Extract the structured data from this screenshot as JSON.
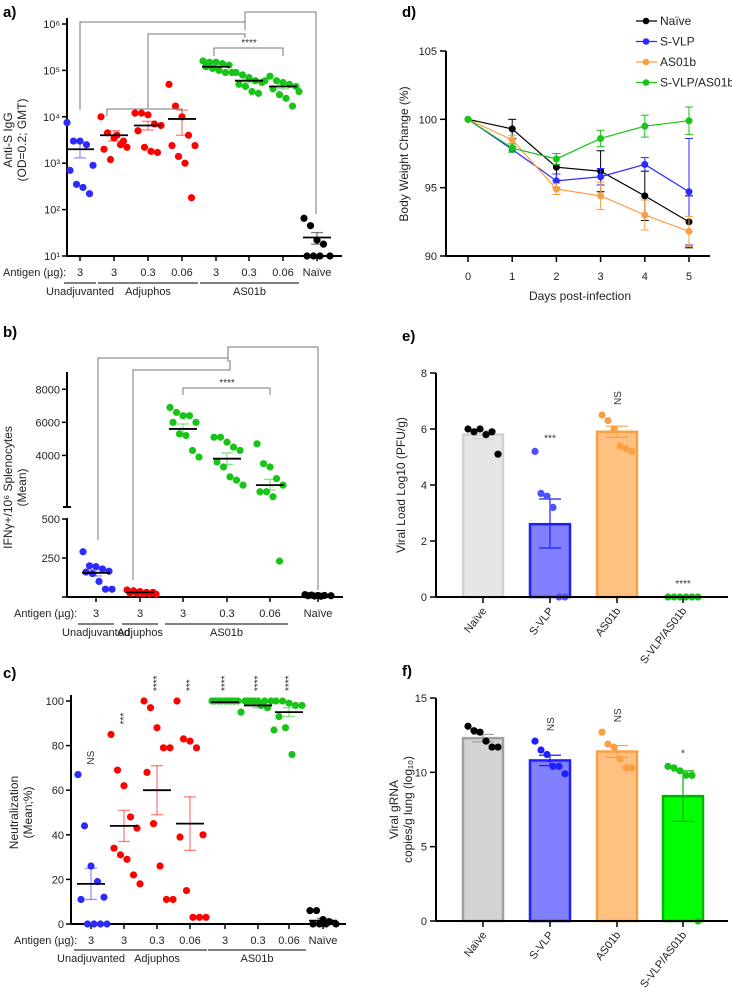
{
  "panels": {
    "a": "a)",
    "b": "b)",
    "c": "c)",
    "d": "d)",
    "e": "e)",
    "f": "f)"
  },
  "colors": {
    "blue": "#2b2bff",
    "red": "#ff0000",
    "green": "#19c419",
    "black": "#000000",
    "orange": "#f9a045"
  },
  "chart_data": [
    {
      "id": "a",
      "type": "scatter",
      "scale": "log",
      "ylabel": [
        "Anti-S IgG",
        "(OD=0.2; GMT)"
      ],
      "ylim": [
        10,
        1000000
      ],
      "yticks": [
        {
          "v": 10,
          "label": "10¹"
        },
        {
          "v": 100,
          "label": "10²"
        },
        {
          "v": 1000,
          "label": "10³"
        },
        {
          "v": 10000,
          "label": "10⁴"
        },
        {
          "v": 100000,
          "label": "10⁵"
        },
        {
          "v": 1000000,
          "label": "10⁶"
        }
      ],
      "antigen_label": "Antigen (µg):",
      "x_tick_labels": [
        "3",
        "3",
        "0.3",
        "0.06",
        "3",
        "0.3",
        "0.06",
        "Naïve"
      ],
      "adjuvant_groups": [
        {
          "label": "Unadjuvanted",
          "from": 0,
          "to": 0
        },
        {
          "label": "Adjuphos",
          "from": 1,
          "to": 3
        },
        {
          "label": "AS01b",
          "from": 4,
          "to": 6
        }
      ],
      "significance": "****",
      "groups": [
        {
          "color": "blue",
          "points": [
            7500,
            3000,
            3000,
            2500,
            900,
            700,
            350,
            300,
            220
          ],
          "mean": 2000,
          "err": [
            1300,
            2800
          ]
        },
        {
          "color": "red",
          "points": [
            10000,
            4500,
            3500,
            2500,
            2200,
            2000,
            1200,
            4000,
            3000
          ],
          "mean": 4000,
          "err": [
            3000,
            5000
          ]
        },
        {
          "color": "red",
          "points": [
            12000,
            12000,
            11000,
            7000,
            6500,
            5000,
            2200,
            1800,
            1700
          ],
          "mean": 6500,
          "err": [
            5200,
            8000
          ]
        },
        {
          "color": "red",
          "points": [
            50000,
            17000,
            10000,
            4000,
            2400,
            2400,
            1400,
            1000,
            180
          ],
          "mean": 9000,
          "err": [
            4000,
            14000
          ]
        },
        {
          "color": "green",
          "points": [
            160000,
            150000,
            150000,
            140000,
            130000,
            120000,
            110000,
            100000,
            90000,
            90000
          ],
          "mean": 120000,
          "err": [
            110000,
            135000
          ]
        },
        {
          "color": "green",
          "points": [
            90000,
            80000,
            70000,
            60000,
            55000,
            50000,
            45000,
            35000,
            32000,
            60000
          ],
          "mean": 60000,
          "err": [
            55000,
            66000
          ]
        },
        {
          "color": "green",
          "points": [
            75000,
            60000,
            55000,
            50000,
            45000,
            40000,
            30000,
            25000,
            17000,
            35000
          ],
          "mean": 45000,
          "err": [
            40000,
            50000
          ]
        },
        {
          "color": "black",
          "points": [
            65,
            45,
            22,
            18,
            10,
            10,
            10,
            10
          ],
          "mean": 25,
          "err": [
            18,
            32
          ]
        }
      ]
    },
    {
      "id": "b",
      "type": "scatter",
      "scale": "broken-linear",
      "ylabel": [
        "IFNγ+/10⁶ Splenocytes",
        "(Mean)"
      ],
      "yticks": [
        {
          "v": 0,
          "label": ""
        },
        {
          "v": 250,
          "label": "250"
        },
        {
          "v": 500,
          "label": "500"
        },
        {
          "v": 4000,
          "label": "4000"
        },
        {
          "v": 6000,
          "label": "6000"
        },
        {
          "v": 8000,
          "label": "8000"
        }
      ],
      "antigen_label": "Antigen (µg):",
      "x_tick_labels": [
        "3",
        "3",
        "3",
        "0.3",
        "0.06",
        "Naïve"
      ],
      "adjuvant_groups": [
        {
          "label": "Unadjuvanted",
          "from": 0,
          "to": 0
        },
        {
          "label": "Adjuphos",
          "from": 1,
          "to": 1
        },
        {
          "label": "AS01b",
          "from": 2,
          "to": 4
        }
      ],
      "significance": "****",
      "groups": [
        {
          "color": "blue",
          "points": [
            290,
            200,
            195,
            180,
            165,
            160,
            150,
            100,
            50,
            50
          ],
          "mean": 155,
          "err": [
            135,
            175
          ]
        },
        {
          "color": "red",
          "points": [
            45,
            40,
            35,
            30,
            30,
            25,
            25,
            20,
            20,
            18
          ],
          "mean": 30,
          "err": [
            25,
            35
          ]
        },
        {
          "color": "green",
          "points": [
            6900,
            6600,
            6400,
            6400,
            6000,
            6000,
            5300,
            5200,
            4300,
            3900
          ],
          "mean": 5600,
          "err": [
            5300,
            5900
          ]
        },
        {
          "color": "green",
          "points": [
            5100,
            5100,
            4800,
            4500,
            4300,
            3600,
            3300,
            2700,
            2500,
            2200
          ],
          "mean": 3800,
          "err": [
            3450,
            4150
          ]
        },
        {
          "color": "green",
          "points": [
            4700,
            3500,
            3300,
            2600,
            2200,
            1800,
            1800,
            1500,
            230
          ],
          "mean": 2200,
          "err": [
            1900,
            2550
          ]
        },
        {
          "color": "black",
          "points": [
            15,
            12,
            10,
            10,
            8,
            8,
            6,
            5
          ],
          "mean": 9,
          "err": [
            7,
            11
          ]
        }
      ]
    },
    {
      "id": "c",
      "type": "scatter",
      "scale": "linear",
      "ylabel": [
        "Neutralization",
        "(Mean;%)"
      ],
      "ylim": [
        0,
        100
      ],
      "yticks": [
        {
          "v": 0,
          "label": "0"
        },
        {
          "v": 20,
          "label": "20"
        },
        {
          "v": 40,
          "label": "40"
        },
        {
          "v": 60,
          "label": "60"
        },
        {
          "v": 80,
          "label": "80"
        },
        {
          "v": 100,
          "label": "100"
        }
      ],
      "antigen_label": "Antigen (µg):",
      "x_tick_labels": [
        "3",
        "3",
        "0.3",
        "0.06",
        "3",
        "0.3",
        "0.06",
        "Naïve"
      ],
      "adjuvant_groups": [
        {
          "label": "Unadjuvanted",
          "from": 0,
          "to": 0
        },
        {
          "label": "Adjuphos",
          "from": 1,
          "to": 3
        },
        {
          "label": "AS01b",
          "from": 4,
          "to": 6
        }
      ],
      "significance_per_group": [
        "NS",
        "***",
        "****",
        "***",
        "****",
        "****",
        "****",
        ""
      ],
      "groups": [
        {
          "color": "blue",
          "points": [
            67,
            44,
            26,
            19,
            12,
            11,
            0,
            0,
            0,
            0
          ],
          "mean": 18,
          "err": [
            11,
            25
          ]
        },
        {
          "color": "red",
          "points": [
            85,
            69,
            62,
            48,
            43,
            34,
            31,
            29,
            22,
            18
          ],
          "mean": 44,
          "err": [
            37,
            51
          ]
        },
        {
          "color": "red",
          "points": [
            100,
            97,
            88,
            79,
            79,
            68,
            45,
            26,
            11,
            11
          ],
          "mean": 60,
          "err": [
            49,
            71
          ]
        },
        {
          "color": "red",
          "points": [
            100,
            83,
            82,
            79,
            40,
            39,
            15,
            3,
            3,
            3
          ],
          "mean": 45,
          "err": [
            33,
            57
          ]
        },
        {
          "color": "green",
          "points": [
            100,
            100,
            100,
            100,
            100,
            100,
            100,
            100,
            100,
            95
          ],
          "mean": 99.5,
          "err": [
            99,
            100
          ]
        },
        {
          "color": "green",
          "points": [
            100,
            100,
            100,
            100,
            100,
            100,
            100,
            98,
            97,
            87
          ],
          "mean": 98,
          "err": [
            97,
            99
          ]
        },
        {
          "color": "green",
          "points": [
            100,
            100,
            99,
            98,
            98,
            93,
            88,
            76
          ],
          "mean": 95,
          "err": [
            93,
            97
          ]
        },
        {
          "color": "black",
          "points": [
            6,
            6,
            2,
            1,
            0,
            0,
            0,
            0
          ],
          "mean": 1.5,
          "err": [
            0.5,
            2.5
          ]
        }
      ]
    },
    {
      "id": "d",
      "type": "line",
      "ylabel": "Body Weight Change (%)",
      "xlabel": "Days post-infection",
      "x": [
        0,
        1,
        2,
        3,
        4,
        5
      ],
      "ylim": [
        90,
        105
      ],
      "yticks": [
        90,
        95,
        100,
        105
      ],
      "legend_position": "top-right",
      "series": [
        {
          "name": "Naïve",
          "color": "#000000",
          "values": [
            100,
            99.3,
            96.5,
            96.2,
            94.4,
            92.5
          ],
          "err": [
            0,
            0.7,
            1.0,
            1.5,
            1.8,
            1.9
          ]
        },
        {
          "name": "S-VLP",
          "color": "#2b2bff",
          "values": [
            100,
            97.8,
            95.5,
            95.8,
            96.7,
            94.7
          ],
          "err": [
            0,
            0.2,
            0.5,
            0.6,
            0.5,
            3.9
          ]
        },
        {
          "name": "AS01b",
          "color": "#f9a045",
          "values": [
            100,
            98.5,
            94.9,
            94.4,
            93.0,
            91.8
          ],
          "err": [
            0,
            0.3,
            0.4,
            1.0,
            1.1,
            1.1
          ]
        },
        {
          "name": "S-VLP/AS01b",
          "color": "#19c419",
          "values": [
            100,
            97.9,
            97.1,
            98.6,
            99.5,
            99.9
          ],
          "err": [
            0,
            0.3,
            0.4,
            0.6,
            0.8,
            1.0
          ]
        }
      ]
    },
    {
      "id": "e",
      "type": "bar",
      "ylabel": "Viral Load Log10 (PFU/g)",
      "ylim": [
        0,
        8
      ],
      "yticks": [
        0,
        2,
        4,
        6,
        8
      ],
      "categories": [
        "Naïve",
        "S-VLP",
        "AS01b",
        "S-VLP/AS01b"
      ],
      "significance": [
        "",
        "***",
        "NS",
        "****"
      ],
      "bars": [
        {
          "value": 5.8,
          "err": [
            5.65,
            5.95
          ],
          "fill": "#e6e6e6",
          "stroke": "#d2d2d2",
          "dot": "#000000",
          "points": [
            6.0,
            5.9,
            6.0,
            5.8,
            5.9,
            5.1
          ]
        },
        {
          "value": 2.6,
          "err": [
            1.75,
            3.5
          ],
          "fill": "#8080ff",
          "stroke": "#1e1eff",
          "dot": "#5050ff",
          "points": [
            5.2,
            3.7,
            3.6,
            3.2,
            0,
            0
          ]
        },
        {
          "value": 5.9,
          "err": [
            5.7,
            6.1
          ],
          "fill": "#ffc080",
          "stroke": "#f9a045",
          "dot": "#f9a045",
          "points": [
            6.5,
            6.3,
            6.0,
            5.4,
            5.3,
            5.2
          ]
        },
        {
          "value": 0,
          "err": [
            0,
            0
          ],
          "fill": "#00ff00",
          "stroke": "#00b400",
          "dot": "#19c419",
          "points": [
            0,
            0,
            0,
            0,
            0,
            0
          ]
        }
      ]
    },
    {
      "id": "f",
      "type": "bar",
      "ylabel": [
        "Viral gRNA",
        "copies/g lung (log₁₀)"
      ],
      "ylim": [
        0,
        15
      ],
      "yticks": [
        0,
        5,
        10,
        15
      ],
      "categories": [
        "Naïve",
        "S-VLP",
        "AS01b",
        "S-VLP/AS01b"
      ],
      "significance": [
        "",
        "NS",
        "NS",
        "*"
      ],
      "bars": [
        {
          "value": 12.3,
          "err": [
            12.05,
            12.55
          ],
          "fill": "#d3d3d3",
          "stroke": "#a0a0a0",
          "dot": "#000000",
          "points": [
            13.1,
            12.8,
            12.7,
            12.1,
            11.7,
            11.7
          ]
        },
        {
          "value": 10.8,
          "err": [
            10.45,
            11.15
          ],
          "fill": "#8080ff",
          "stroke": "#1e1eff",
          "dot": "#1e1eff",
          "points": [
            12.1,
            11.5,
            11.2,
            10.4,
            10.4,
            9.9
          ]
        },
        {
          "value": 11.4,
          "err": [
            11.0,
            11.8
          ],
          "fill": "#ffc080",
          "stroke": "#f9a045",
          "dot": "#f9a045",
          "points": [
            12.7,
            11.9,
            11.7,
            10.9,
            10.3,
            10.3
          ]
        },
        {
          "value": 8.4,
          "err": [
            6.7,
            10.1
          ],
          "fill": "#00ff00",
          "stroke": "#00b400",
          "dot": "#19c419",
          "points": [
            10.4,
            10.3,
            10.1,
            9.8,
            9.8,
            0
          ]
        }
      ]
    }
  ]
}
